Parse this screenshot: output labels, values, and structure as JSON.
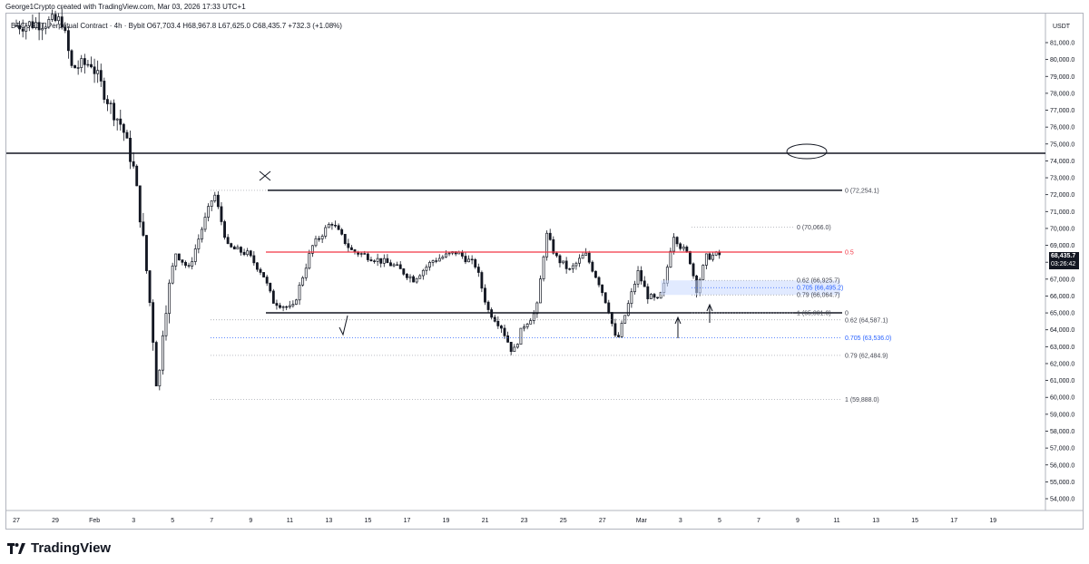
{
  "header": {
    "attribution": "George1Crypto created with TradingView.com, Mar 03, 2026 17:33 UTC+1",
    "symbol_line": "BTCUSDT Perpetual Contract · 4h · Bybit  O67,703.4  H68,967.8  L67,625.0  C68,435.7  +732.3 (+1.08%)"
  },
  "price_axis": {
    "currency": "USDT",
    "last_price": "68,435.7",
    "countdown": "03:26:42"
  },
  "footer": {
    "brand": "TradingView"
  },
  "colors": {
    "up": "#131722",
    "down": "#131722",
    "resistance_red": "#f23645",
    "fib_blue": "#2962ff",
    "zone_fill": "#c9d9ff",
    "grid_text": "#131722"
  },
  "chart_data": {
    "type": "candlestick",
    "title": "BTCUSDT Perpetual Contract · 4h · Bybit",
    "xlabel": "",
    "ylabel": "",
    "y_axis_ticks": [
      54000,
      55000,
      56000,
      57000,
      58000,
      59000,
      60000,
      61000,
      62000,
      63000,
      64000,
      65000,
      66000,
      67000,
      68000,
      69000,
      70000,
      71000,
      72000,
      73000,
      74000,
      75000,
      76000,
      77000,
      78000,
      79000,
      80000,
      81000
    ],
    "y_tick_labels": [
      "54,000.0",
      "55,000.0",
      "56,000.0",
      "57,000.0",
      "58,000.0",
      "59,000.0",
      "60,000.0",
      "61,000.0",
      "62,000.0",
      "63,000.0",
      "64,000.0",
      "65,000.0",
      "66,000.0",
      "67,000.0",
      "68,000.0",
      "69,000.0",
      "70,000.0",
      "71,000.0",
      "72,000.0",
      "73,000.0",
      "74,000.0",
      "75,000.0",
      "76,000.0",
      "77,000.0",
      "78,000.0",
      "79,000.0",
      "80,000.0",
      "81,000.0"
    ],
    "ylim": [
      53300,
      82300
    ],
    "x_tick_labels": [
      "27",
      "29",
      "Feb",
      "3",
      "5",
      "7",
      "9",
      "11",
      "13",
      "15",
      "17",
      "19",
      "21",
      "23",
      "25",
      "27",
      "Mar",
      "3",
      "5",
      "7",
      "9",
      "11",
      "13",
      "15",
      "17",
      "19"
    ],
    "series_path": [
      {
        "day": 0.0,
        "price": 82000
      },
      {
        "day": 2.5,
        "price": 82300
      },
      {
        "day": 3.0,
        "price": 79500
      },
      {
        "day": 4.0,
        "price": 79800
      },
      {
        "day": 5.0,
        "price": 77200
      },
      {
        "day": 5.6,
        "price": 76000
      },
      {
        "day": 6.2,
        "price": 73400
      },
      {
        "day": 6.7,
        "price": 69000
      },
      {
        "day": 7.1,
        "price": 64500
      },
      {
        "day": 7.4,
        "price": 60000
      },
      {
        "day": 7.7,
        "price": 64500
      },
      {
        "day": 8.3,
        "price": 68600
      },
      {
        "day": 9.0,
        "price": 67600
      },
      {
        "day": 9.7,
        "price": 70100
      },
      {
        "day": 10.3,
        "price": 72100
      },
      {
        "day": 11.0,
        "price": 68900
      },
      {
        "day": 12.0,
        "price": 68500
      },
      {
        "day": 12.8,
        "price": 67300
      },
      {
        "day": 13.3,
        "price": 65700
      },
      {
        "day": 14.3,
        "price": 65200
      },
      {
        "day": 15.3,
        "price": 68900
      },
      {
        "day": 16.3,
        "price": 70400
      },
      {
        "day": 17.3,
        "price": 68700
      },
      {
        "day": 18.3,
        "price": 68300
      },
      {
        "day": 19.5,
        "price": 67800
      },
      {
        "day": 20.5,
        "price": 67000
      },
      {
        "day": 21.5,
        "price": 68100
      },
      {
        "day": 22.7,
        "price": 68600
      },
      {
        "day": 23.7,
        "price": 67800
      },
      {
        "day": 24.3,
        "price": 65200
      },
      {
        "day": 25.0,
        "price": 64200
      },
      {
        "day": 25.6,
        "price": 62600
      },
      {
        "day": 26.1,
        "price": 64200
      },
      {
        "day": 26.8,
        "price": 65100
      },
      {
        "day": 27.3,
        "price": 69700
      },
      {
        "day": 27.8,
        "price": 68300
      },
      {
        "day": 28.5,
        "price": 67500
      },
      {
        "day": 29.3,
        "price": 68500
      },
      {
        "day": 30.0,
        "price": 66800
      },
      {
        "day": 30.5,
        "price": 65200
      },
      {
        "day": 30.9,
        "price": 63200
      },
      {
        "day": 31.5,
        "price": 65500
      },
      {
        "day": 32.0,
        "price": 67400
      },
      {
        "day": 32.5,
        "price": 66000
      },
      {
        "day": 33.0,
        "price": 65700
      },
      {
        "day": 33.3,
        "price": 66400
      },
      {
        "day": 33.8,
        "price": 69700
      },
      {
        "day": 34.2,
        "price": 68900
      },
      {
        "day": 34.6,
        "price": 68400
      },
      {
        "day": 35.0,
        "price": 66400
      },
      {
        "day": 35.5,
        "price": 68300
      },
      {
        "day": 36.0,
        "price": 68435.7
      }
    ],
    "annotations": {
      "horizontal_lines": [
        {
          "name": "major-resistance",
          "price": 74450
        },
        {
          "name": "range-high",
          "price": 72254.1
        },
        {
          "name": "midpoint-0.5",
          "price": 68600
        },
        {
          "name": "range-low",
          "price": 65001.0
        }
      ],
      "fib_left": [
        {
          "label": "0 (72,254.1)",
          "price": 72254.1
        },
        {
          "label": "0.5",
          "price": 68600
        },
        {
          "label": "0",
          "price": 65001.0
        },
        {
          "label": "0.62 (64,587.1)",
          "price": 64587.1
        },
        {
          "label": "0.705 (63,536.0)",
          "price": 63536.0
        },
        {
          "label": "0.79 (62,484.9)",
          "price": 62484.9
        },
        {
          "label": "1 (59,888.0)",
          "price": 59888.0
        }
      ],
      "fib_right": [
        {
          "label": "0 (70,066.0)",
          "price": 70066.0
        },
        {
          "label": "0.62 (66,925.7)",
          "price": 66925.7
        },
        {
          "label": "0.705 (66,495.2)",
          "price": 66495.2
        },
        {
          "label": "0.79 (66,064.7)",
          "price": 66064.7
        },
        {
          "label": "1 (65,001.0)",
          "price": 65001.0
        }
      ]
    },
    "grid": false
  }
}
